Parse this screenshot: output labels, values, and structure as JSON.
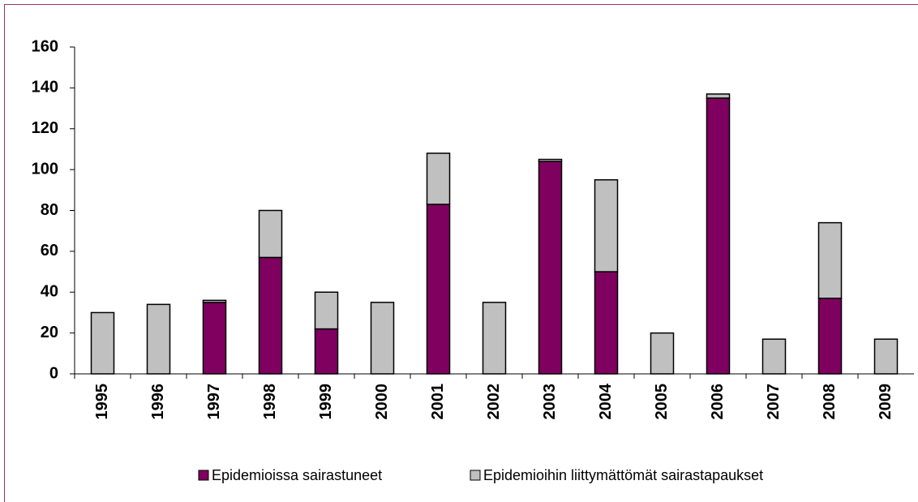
{
  "chart_data": {
    "type": "stacked_bar",
    "categories": [
      "1995",
      "1996",
      "1997",
      "1998",
      "1999",
      "2000",
      "2001",
      "2002",
      "2003",
      "2004",
      "2005",
      "2006",
      "2007",
      "2008",
      "2009"
    ],
    "series": [
      {
        "name": "Epidemioissa sairastuneet",
        "color": "#800060",
        "values": [
          0,
          0,
          35,
          57,
          22,
          0,
          83,
          0,
          104,
          50,
          0,
          135,
          0,
          37,
          0
        ]
      },
      {
        "name": "Epidemioihin liittymättömät sairastapaukset",
        "color": "#c0c0c0",
        "values": [
          30,
          34,
          1,
          23,
          18,
          35,
          25,
          35,
          1,
          45,
          20,
          2,
          17,
          37,
          17
        ]
      }
    ],
    "ylim": [
      0,
      160
    ],
    "yticks": [
      0,
      20,
      40,
      60,
      80,
      100,
      120,
      140,
      160
    ],
    "grid": false,
    "legend": "bottom"
  }
}
